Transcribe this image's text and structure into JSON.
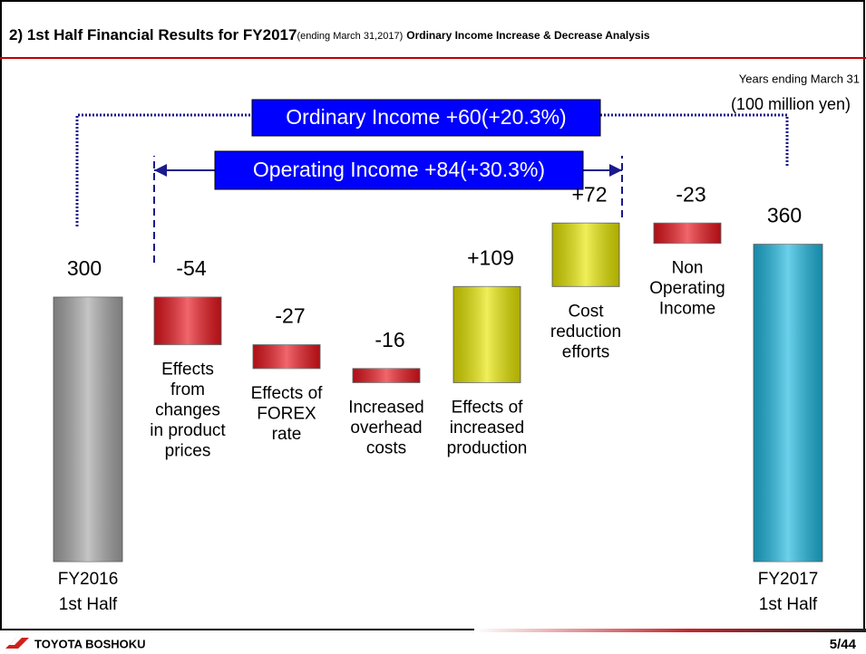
{
  "header": {
    "title": "2) 1st Half Financial Results for FY2017",
    "title_note": "(ending March 31,2017)",
    "title_tail": "Ordinary Income Increase & Decrease Analysis"
  },
  "chart_data": {
    "type": "waterfall",
    "unit_note": "Years ending March 31",
    "unit": "(100 million yen)",
    "annotations": [
      "Ordinary Income +60(+20.3%)",
      "Operating Income +84(+30.3%)"
    ],
    "categories": [
      [
        "FY2016",
        "1st Half"
      ],
      [
        "Effects",
        "from",
        "changes",
        "in product",
        "prices"
      ],
      [
        "Effects of",
        "FOREX",
        "rate"
      ],
      [
        "Increased",
        "overhead",
        "costs"
      ],
      [
        "Effects of",
        "increased",
        "production"
      ],
      [
        "Cost",
        "reduction",
        "efforts"
      ],
      [
        "Non",
        "Operating",
        "Income"
      ],
      [
        "FY2017",
        "1st Half"
      ]
    ],
    "values": [
      300,
      -54,
      -27,
      -16,
      109,
      72,
      -23,
      360
    ],
    "value_labels": [
      "300",
      "-54",
      "-27",
      "-16",
      "+109",
      "+72",
      "-23",
      "360"
    ],
    "totals": [
      true,
      false,
      false,
      false,
      false,
      false,
      false,
      true
    ],
    "colors": [
      "#a6a6a6",
      "#e8141c",
      "#e8141c",
      "#e8141c",
      "#e6e600",
      "#e6e600",
      "#e8141c",
      "#1cb8e0"
    ]
  },
  "footer": {
    "company": "TOYOTA BOSHOKU",
    "page": "5/44"
  }
}
